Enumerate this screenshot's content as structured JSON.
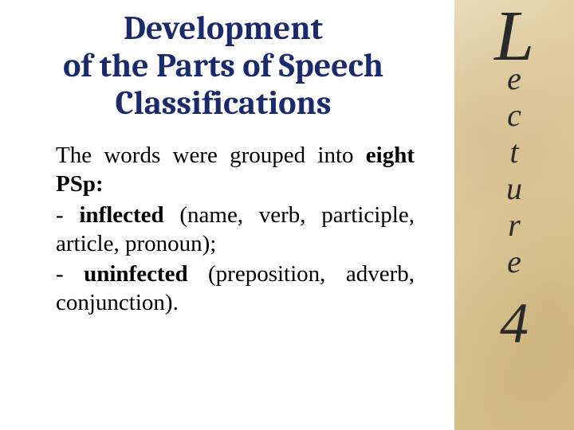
{
  "title_color": "#1a2a6c",
  "body_color": "#000000",
  "sidebar_bg_start": "#e8dbb8",
  "sidebar_bg_end": "#d4bd85",
  "title": {
    "line1": "Development",
    "line2": "of the Parts of  Speech",
    "line3": "Classifications"
  },
  "body": {
    "intro_pre": "The words were grouped into ",
    "intro_bold": "eight PSp:",
    "item1_prefix": "- ",
    "item1_bold": "inflected",
    "item1_rest": " (name, verb, participle, article, pronoun);",
    "item2_prefix": "- ",
    "item2_bold": "uninfected",
    "item2_rest": " (preposition, adverb, conjunction)."
  },
  "sidebar": {
    "big_letter": "L",
    "letters": [
      "e",
      "c",
      "t",
      "u",
      "r",
      "e"
    ],
    "number": "4"
  }
}
